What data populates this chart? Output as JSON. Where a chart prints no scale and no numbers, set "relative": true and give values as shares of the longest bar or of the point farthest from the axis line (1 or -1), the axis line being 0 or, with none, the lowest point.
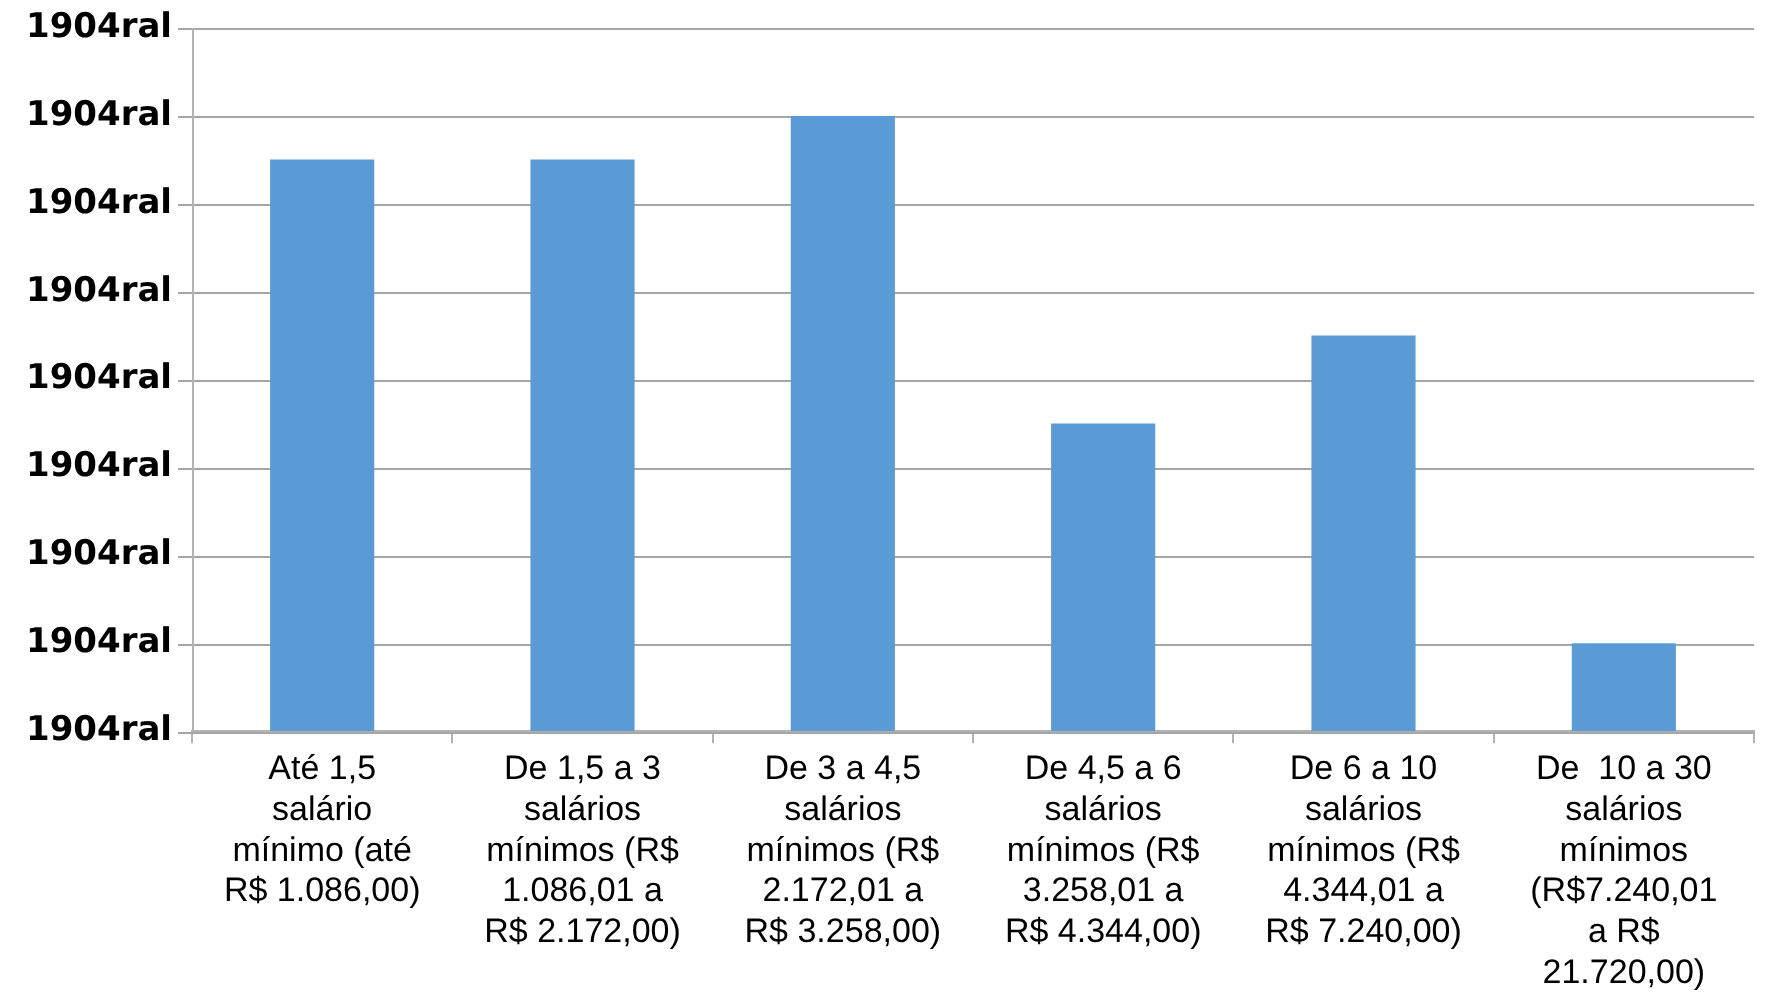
{
  "chart_data": {
    "type": "bar",
    "categories": [
      "Até 1,5 salário mínimo (até R$ 1.086,00)",
      "De 1,5 a 3 salários mínimos (R$ 1.086,01 a R$ 2.172,00)",
      "De 3 a 4,5 salários mínimos (R$ 2.172,01 a R$ 3.258,00)",
      "De 4,5 a 6 salários mínimos (R$ 3.258,01 a R$ 4.344,00)",
      "De 6 a 10 salários mínimos (R$ 4.344,01 a R$ 7.240,00)",
      "De  10 a 30 salários mínimos (R$7.240,01 a R$ 21.720,00)"
    ],
    "values": [
      0.929,
      0.929,
      1,
      0.5,
      0.643,
      0.143
    ],
    "color": "#5b9bd5",
    "relative": true,
    "annotations": [
      "1904ral",
      "1904ral",
      "1904ral",
      "1904ral",
      "1904ral",
      "1904ral",
      "1904ral",
      "1904ral",
      "1904ral"
    ],
    "grid": "y"
  }
}
